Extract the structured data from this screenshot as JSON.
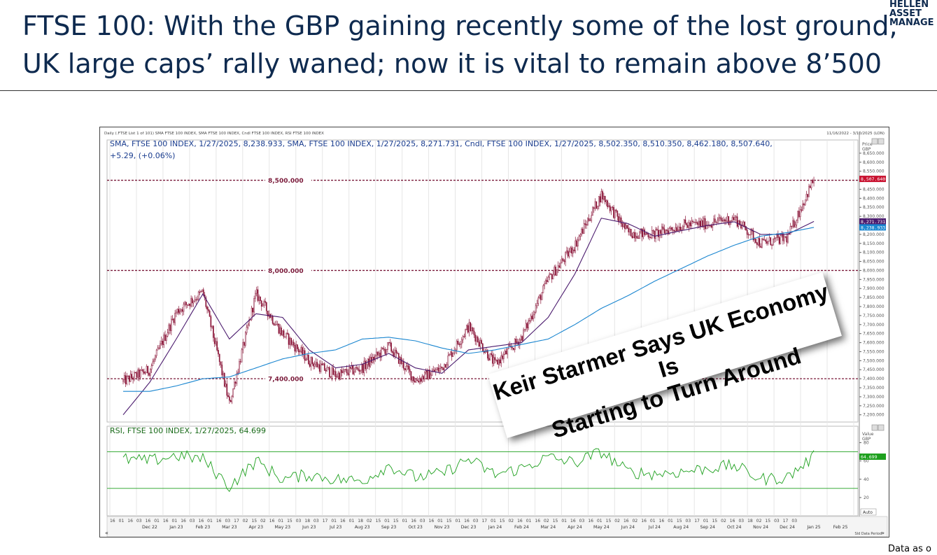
{
  "slide": {
    "title_line1": "FTSE 100: With the GBP gaining recently some of the lost ground,",
    "title_line2": "UK large caps’ rally waned; now it is vital to remain above 8’500",
    "logo_line1": "HELLEN",
    "logo_line2": "ASSET",
    "logo_line3": "MANAGE",
    "footnote": "Data as o"
  },
  "headline": {
    "line1": "Keir Starmer Says UK Economy Is",
    "line2": "Starting to Turn Around"
  },
  "chart_data": {
    "type": "line",
    "header_text": "Daily (.FTSE List 1 of 101) SMA FTSE 100 INDEX, SMA FTSE 100 INDEX, Cndl FTSE 100 INDEX, RSI FTSE 100 INDEX",
    "date_range_text": "11/16/2022 - 3/10/2025 (LON)",
    "legend_price_line1": "SMA, FTSE 100 INDEX, 1/27/2025, 8,238.933, SMA, FTSE 100 INDEX, 1/27/2025, 8,271.731, Cndl, FTSE 100 INDEX, 1/27/2025, 8,502.350, 8,510.350, 8,462.180, 8,507.640,",
    "legend_price_line2": "+5.29, (+0.06%)",
    "legend_rsi": "RSI, FTSE 100 INDEX, 1/27/2025, 64.699",
    "price_axis_label_1": "Price",
    "price_axis_label_2": "GBP",
    "rsi_axis_label_1": "Value",
    "rsi_axis_label_2": "GBP",
    "rsi_auto_label": "Auto",
    "price_axis_ticks": [
      "8,650.000",
      "8,600.000",
      "8,550.000",
      "8,450.000",
      "8,400.000",
      "8,350.000",
      "8,300.000",
      "8,200.000",
      "8,150.000",
      "8,100.000",
      "8,050.000",
      "8,000.000",
      "7,950.000",
      "7,900.000",
      "7,850.000",
      "7,800.000",
      "7,750.000",
      "7,700.000",
      "7,650.000",
      "7,600.000",
      "7,550.000",
      "7,500.000",
      "7,450.000",
      "7,400.000",
      "7,350.000",
      "7,300.000",
      "7,250.000",
      "7,200.000"
    ],
    "price_axis_tick_values": [
      8650,
      8600,
      8550,
      8450,
      8400,
      8350,
      8300,
      8200,
      8150,
      8100,
      8050,
      8000,
      7950,
      7900,
      7850,
      7800,
      7750,
      7700,
      7650,
      7600,
      7550,
      7500,
      7450,
      7400,
      7350,
      7300,
      7250,
      7200
    ],
    "price_ylim": [
      7160,
      8700
    ],
    "rsi_axis_ticks": [
      "80",
      "60",
      "40",
      "20"
    ],
    "rsi_axis_tick_values": [
      80,
      60,
      40,
      20
    ],
    "rsi_ylim": [
      0,
      98
    ],
    "value_tags": [
      {
        "label": "8,507.640",
        "value": 8507.64,
        "color": "#c8102e"
      },
      {
        "label": "8,271.731",
        "value": 8271.731,
        "color": "#4b1b6e"
      },
      {
        "label": "8,238.933",
        "value": 8238.933,
        "color": "#1a86d0"
      },
      {
        "label": "64.699",
        "value": 64.699,
        "color": "#1ea01e",
        "panel": "rsi"
      }
    ],
    "horizontal_levels": [
      {
        "label": "8,500.000",
        "value": 8500
      },
      {
        "label": "8,000.000",
        "value": 8000
      },
      {
        "label": "7,400.000",
        "value": 7400
      }
    ],
    "rsi_bands": [
      70,
      30
    ],
    "x_day_labels": [
      "16",
      "01",
      "16",
      "03",
      "16",
      "01",
      "16",
      "01",
      "16",
      "03",
      "16",
      "01",
      "16",
      "03",
      "17",
      "02",
      "15",
      "02",
      "16",
      "01",
      "15",
      "03",
      "18",
      "03",
      "17",
      "01",
      "16",
      "01",
      "18",
      "02",
      "15",
      "01",
      "15",
      "01",
      "16",
      "03",
      "16",
      "01",
      "15",
      "01",
      "16",
      "03",
      "17",
      "01",
      "15",
      "02",
      "16",
      "01",
      "16",
      "02",
      "15",
      "01",
      "16",
      "03",
      "16",
      "01",
      "15",
      "02",
      "16",
      "02",
      "16",
      "01",
      "16",
      "01",
      "15",
      "03",
      "17",
      "01",
      "15",
      "02",
      "16",
      "03",
      "18",
      "02",
      "15",
      "03",
      "17",
      "03"
    ],
    "x_month_labels": [
      "Dec 22",
      "Jan 23",
      "Feb 23",
      "Mar 23",
      "Apr 23",
      "May 23",
      "Jun 23",
      "Jul 23",
      "Aug 23",
      "Sep 23",
      "Oct 23",
      "Nov 23",
      "Dec 23",
      "Jan 24",
      "Feb 24",
      "Mar 24",
      "Apr 24",
      "May 24",
      "Jun 24",
      "Jul 24",
      "Aug 24",
      "Sep 24",
      "Oct 24",
      "Nov 24",
      "Dec 24",
      "Jan 25",
      "Feb 25"
    ],
    "x_months_start": "Nov 22",
    "x_months_end": "Mar 25",
    "x_axis_end_text": "Sld Data Period",
    "series": [
      {
        "name": "Cndl, FTSE 100 INDEX",
        "color": "#8a1538",
        "x": [
          "Nov 22",
          "Dec 22",
          "Jan 23",
          "Feb 23",
          "Mar 23",
          "Apr 23",
          "May 23",
          "Jun 23",
          "Jul 23",
          "Aug 23",
          "Sep 23",
          "Oct 23",
          "Nov 23",
          "Dec 23",
          "Jan 24",
          "Feb 24",
          "Mar 24",
          "Apr 24",
          "May 24",
          "Jun 24",
          "Jul 24",
          "Aug 24",
          "Sep 24",
          "Oct 24",
          "Nov 24",
          "Dec 24",
          "Jan 25"
        ],
        "close": [
          7385,
          7450,
          7770,
          7880,
          7260,
          7870,
          7650,
          7500,
          7420,
          7460,
          7580,
          7390,
          7460,
          7690,
          7480,
          7630,
          7950,
          8140,
          8420,
          8210,
          8200,
          8250,
          8260,
          8290,
          8150,
          8180,
          8507.64
        ]
      },
      {
        "name": "SMA, FTSE 100 INDEX",
        "color": "#4b1b6e",
        "x": [
          "Nov 22",
          "Dec 22",
          "Jan 23",
          "Feb 23",
          "Mar 23",
          "Apr 23",
          "May 23",
          "Jun 23",
          "Jul 23",
          "Aug 23",
          "Sep 23",
          "Oct 23",
          "Nov 23",
          "Dec 23",
          "Jan 24",
          "Feb 24",
          "Mar 24",
          "Apr 24",
          "May 24",
          "Jun 24",
          "Jul 24",
          "Aug 24",
          "Sep 24",
          "Oct 24",
          "Nov 24",
          "Dec 24",
          "Jan 25"
        ],
        "values": [
          7200,
          7380,
          7620,
          7870,
          7620,
          7760,
          7740,
          7560,
          7460,
          7480,
          7540,
          7460,
          7430,
          7560,
          7580,
          7600,
          7740,
          7980,
          8290,
          8260,
          8190,
          8220,
          8250,
          8270,
          8200,
          8200,
          8271.731
        ]
      },
      {
        "name": "SMA, FTSE 100 INDEX",
        "color": "#1a86d0",
        "x": [
          "Nov 22",
          "Dec 22",
          "Jan 23",
          "Feb 23",
          "Mar 23",
          "Apr 23",
          "May 23",
          "Jun 23",
          "Jul 23",
          "Aug 23",
          "Sep 23",
          "Oct 23",
          "Nov 23",
          "Dec 23",
          "Jan 24",
          "Feb 24",
          "Mar 24",
          "Apr 24",
          "May 24",
          "Jun 24",
          "Jul 24",
          "Aug 24",
          "Sep 24",
          "Oct 24",
          "Nov 24",
          "Dec 24",
          "Jan 25"
        ],
        "values": [
          7330,
          7330,
          7360,
          7400,
          7410,
          7460,
          7510,
          7540,
          7560,
          7620,
          7630,
          7610,
          7570,
          7540,
          7560,
          7590,
          7620,
          7700,
          7790,
          7860,
          7940,
          8010,
          8080,
          8140,
          8190,
          8210,
          8238.933
        ]
      },
      {
        "name": "RSI, FTSE 100 INDEX",
        "color": "#1ea01e",
        "panel": "rsi",
        "x": [
          "Nov 22",
          "Dec 22",
          "Jan 23",
          "Feb 23",
          "Mar 23",
          "Apr 23",
          "May 23",
          "Jun 23",
          "Jul 23",
          "Aug 23",
          "Sep 23",
          "Oct 23",
          "Nov 23",
          "Dec 23",
          "Jan 24",
          "Feb 24",
          "Mar 24",
          "Apr 24",
          "May 24",
          "Jun 24",
          "Jul 24",
          "Aug 24",
          "Sep 24",
          "Oct 24",
          "Nov 24",
          "Dec 24",
          "Jan 25"
        ],
        "values": [
          62,
          60,
          66,
          62,
          32,
          60,
          40,
          45,
          40,
          38,
          55,
          42,
          46,
          62,
          45,
          52,
          64,
          58,
          70,
          48,
          46,
          48,
          52,
          55,
          40,
          42,
          64.699
        ]
      }
    ]
  }
}
